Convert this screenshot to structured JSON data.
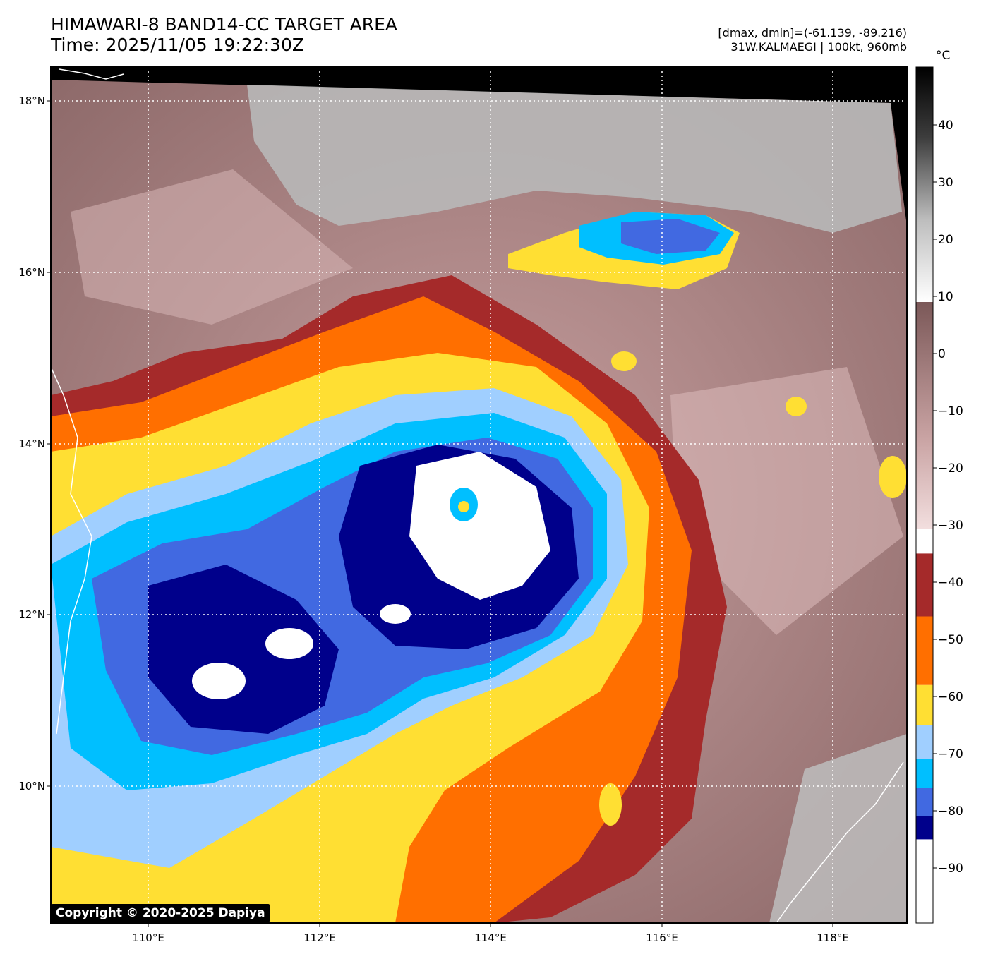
{
  "header": {
    "title_line1": "HIMAWARI-8 BAND14-CC TARGET AREA",
    "title_line2": "Time: 2025/11/05 19:22:30Z",
    "info_line1": "[dmax, dmin]=(-61.139, -89.216)",
    "info_line2": "31W.KALMAEGI | 100kt, 960mb"
  },
  "map": {
    "lon_ticks": [
      "110°E",
      "112°E",
      "114°E",
      "116°E",
      "118°E"
    ],
    "lat_ticks": [
      "18°N",
      "16°N",
      "14°N",
      "12°N",
      "10°N"
    ],
    "copyright": "Copyright © 2020-2025 Dapiya"
  },
  "colorbar": {
    "unit": "°C",
    "tick_labels": [
      "40",
      "30",
      "20",
      "10",
      "0",
      "−10",
      "−20",
      "−30",
      "−40",
      "−50",
      "−60",
      "−70",
      "−80",
      "−90"
    ],
    "bands": [
      {
        "from": -100,
        "to": -84,
        "color": "#ffffff"
      },
      {
        "from": -84,
        "to": -80,
        "color": "#00008b"
      },
      {
        "from": -80,
        "to": -75,
        "color": "#4169e1"
      },
      {
        "from": -75,
        "to": -70,
        "color": "#00bfff"
      },
      {
        "from": -70,
        "to": -64,
        "color": "#a0cfff"
      },
      {
        "from": -64,
        "to": -57,
        "color": "#ffdf33"
      },
      {
        "from": -57,
        "to": -45,
        "color": "#ff6f00"
      },
      {
        "from": -45,
        "to": -34,
        "color": "#a52a2a"
      }
    ]
  }
}
